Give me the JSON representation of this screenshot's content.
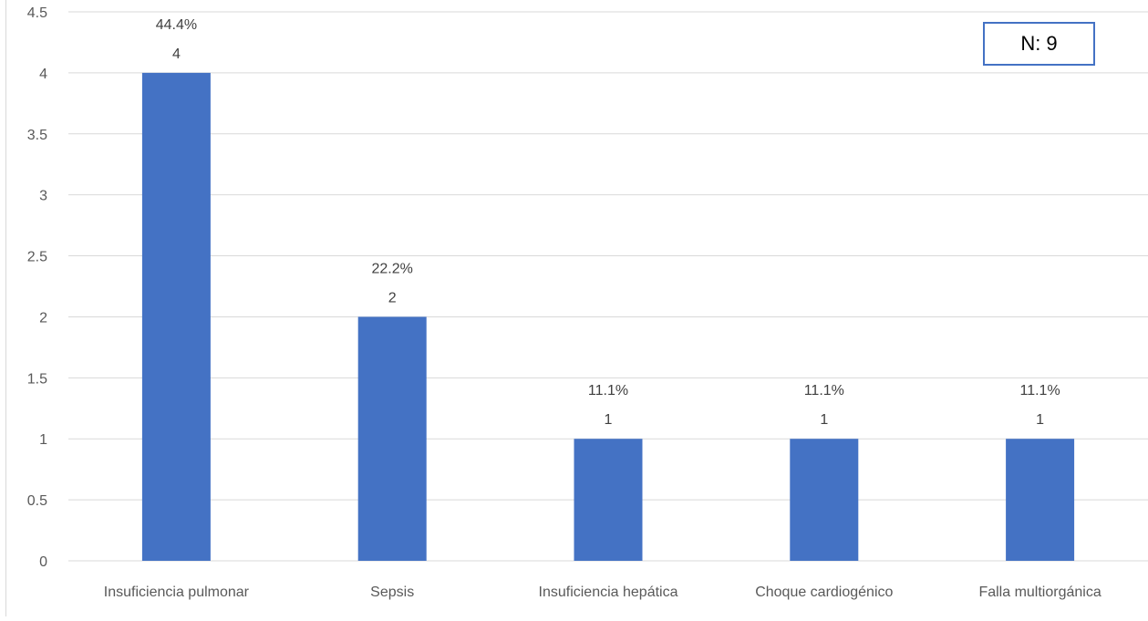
{
  "chart_data": {
    "type": "bar",
    "title": "",
    "xlabel": "",
    "ylabel": "",
    "categories": [
      "Insuficiencia pulmonar",
      "Sepsis",
      "Insuficiencia hepática",
      "Choque cardiogénico",
      "Falla multiorgánica"
    ],
    "series": [
      {
        "values": [
          4,
          2,
          1,
          1,
          1
        ]
      }
    ],
    "data_labels": [
      {
        "percent": "44.4%",
        "value": "4"
      },
      {
        "percent": "22.2%",
        "value": "2"
      },
      {
        "percent": "11.1%",
        "value": "1"
      },
      {
        "percent": "11.1%",
        "value": "1"
      },
      {
        "percent": "11.1%",
        "value": "1"
      }
    ],
    "ylim": [
      0,
      4.5
    ],
    "yticks": [
      "0",
      "0.5",
      "1",
      "1.5",
      "2",
      "2.5",
      "3",
      "3.5",
      "4",
      "4.5"
    ],
    "grid": true,
    "legend": "none",
    "bar_color": "#4472c4",
    "grid_color": "#d9d9d9"
  },
  "annotation": {
    "text": "N: 9",
    "border_color": "#4472c4"
  }
}
